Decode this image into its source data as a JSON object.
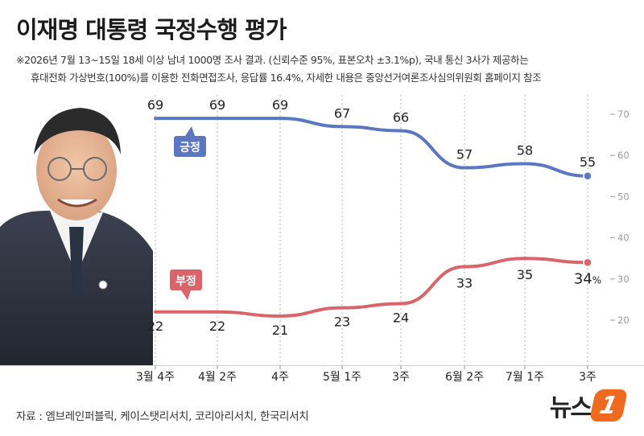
{
  "title": "이재명 대통령 국정수행 평가",
  "notes": [
    "※2026년 7월 13~15일 18세 이상 남녀 1000명 조사 결과. (신뢰수준 95%, 표본오차 ±3.1%p), 국내 통신 3사가 제공하는",
    "휴대전화 가상번호(100%)를 이용한 전화면접조사, 응답률 16.4%, 자세한 내용은 중앙선거여론조사심의위원회 홈페이지 참조"
  ],
  "source": "자료 : 엠브레인퍼블릭, 케이스탯리서치, 코리아리서치, 한국리서치",
  "logo": {
    "text": "뉴스",
    "badge": "1"
  },
  "colors": {
    "positive": "#5b77c2",
    "negative": "#d9646a",
    "axis": "#9a9a9a"
  },
  "chart_data": {
    "type": "line",
    "title": "이재명 대통령 국정수행 평가",
    "categories": [
      "3월 4주",
      "4월 2주",
      "4주",
      "5월 1주",
      "3주",
      "6월 2주",
      "7월 1주",
      "3주"
    ],
    "series": [
      {
        "name": "긍정",
        "values": [
          69,
          69,
          69,
          67,
          66,
          57,
          58,
          55
        ],
        "color": "#5b77c2"
      },
      {
        "name": "부정",
        "values": [
          22,
          22,
          21,
          23,
          24,
          33,
          35,
          34
        ],
        "color": "#d9646a"
      }
    ],
    "last_value_suffix": "%",
    "yaxis": {
      "ticks": [
        70,
        60,
        50,
        40,
        30,
        20
      ],
      "position": "right"
    },
    "ylim": [
      15,
      75
    ],
    "grid": "vertical dashed"
  }
}
